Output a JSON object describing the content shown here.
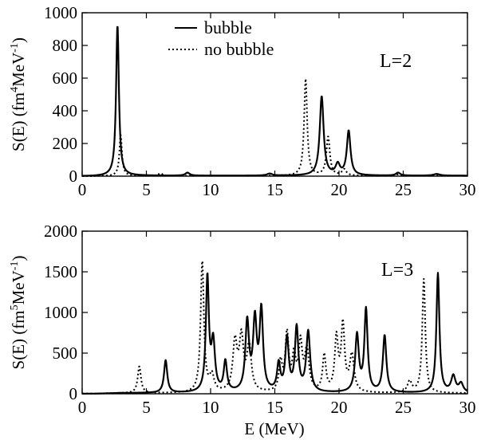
{
  "figure": {
    "xlabel": "E (MeV)"
  },
  "chart_data": [
    {
      "type": "line",
      "panel_label": "L=2",
      "ylabel_main": "S(E) (fm",
      "ylabel_sup1": "4",
      "ylabel_mid": "MeV",
      "ylabel_sup2": "-1",
      "ylabel_end": ")",
      "xlim": [
        0,
        30
      ],
      "ylim": [
        0,
        1000
      ],
      "xticks": [
        0,
        5,
        10,
        15,
        20,
        25,
        30
      ],
      "yticks": [
        0,
        200,
        400,
        600,
        800,
        1000
      ],
      "legend": {
        "placement": "top-center"
      },
      "series": [
        {
          "name": "bubble",
          "style": "solid",
          "color": "#000000",
          "peaks": [
            {
              "e": 2.75,
              "h": 925,
              "w": 0.13
            },
            {
              "e": 8.2,
              "h": 18,
              "w": 0.2
            },
            {
              "e": 14.6,
              "h": 12,
              "w": 0.25
            },
            {
              "e": 18.65,
              "h": 485,
              "w": 0.18
            },
            {
              "e": 19.9,
              "h": 65,
              "w": 0.2
            },
            {
              "e": 20.75,
              "h": 272,
              "w": 0.17
            },
            {
              "e": 24.6,
              "h": 18,
              "w": 0.2
            },
            {
              "e": 27.6,
              "h": 10,
              "w": 0.3
            }
          ],
          "baseline": 3
        },
        {
          "name": "no bubble",
          "style": "dotted",
          "color": "#000000",
          "peaks": [
            {
              "e": 3.0,
              "h": 250,
              "w": 0.12
            },
            {
              "e": 6.1,
              "h": 15,
              "w": 0.2
            },
            {
              "e": 17.4,
              "h": 592,
              "w": 0.14
            },
            {
              "e": 19.15,
              "h": 238,
              "w": 0.16
            },
            {
              "e": 20.4,
              "h": 38,
              "w": 0.2
            },
            {
              "e": 24.5,
              "h": 8,
              "w": 0.3
            }
          ],
          "baseline": 2
        }
      ]
    },
    {
      "type": "line",
      "panel_label": "L=3",
      "ylabel_main": "S(E) (fm",
      "ylabel_sup1": "5",
      "ylabel_mid": "MeV",
      "ylabel_sup2": "-1",
      "ylabel_end": ")",
      "xlim": [
        0,
        30
      ],
      "ylim": [
        0,
        2000
      ],
      "xticks": [
        0,
        5,
        10,
        15,
        20,
        25,
        30
      ],
      "yticks": [
        0,
        500,
        1000,
        1500,
        2000
      ],
      "series": [
        {
          "name": "bubble",
          "style": "solid",
          "color": "#000000",
          "peaks": [
            {
              "e": 6.5,
              "h": 400,
              "w": 0.15
            },
            {
              "e": 9.75,
              "h": 1400,
              "w": 0.14
            },
            {
              "e": 10.2,
              "h": 600,
              "w": 0.17
            },
            {
              "e": 11.15,
              "h": 370,
              "w": 0.15
            },
            {
              "e": 12.85,
              "h": 850,
              "w": 0.17
            },
            {
              "e": 13.45,
              "h": 850,
              "w": 0.17
            },
            {
              "e": 13.95,
              "h": 980,
              "w": 0.16
            },
            {
              "e": 15.3,
              "h": 330,
              "w": 0.15
            },
            {
              "e": 15.95,
              "h": 650,
              "w": 0.16
            },
            {
              "e": 16.7,
              "h": 780,
              "w": 0.16
            },
            {
              "e": 17.6,
              "h": 740,
              "w": 0.18
            },
            {
              "e": 21.4,
              "h": 700,
              "w": 0.17
            },
            {
              "e": 22.1,
              "h": 1010,
              "w": 0.15
            },
            {
              "e": 23.55,
              "h": 700,
              "w": 0.16
            },
            {
              "e": 27.7,
              "h": 1470,
              "w": 0.14
            },
            {
              "e": 28.9,
              "h": 200,
              "w": 0.2
            },
            {
              "e": 29.5,
              "h": 110,
              "w": 0.2
            }
          ],
          "baseline": 8
        },
        {
          "name": "no bubble",
          "style": "dotted",
          "color": "#000000",
          "peaks": [
            {
              "e": 4.45,
              "h": 330,
              "w": 0.15
            },
            {
              "e": 9.35,
              "h": 1620,
              "w": 0.15
            },
            {
              "e": 10.1,
              "h": 200,
              "w": 0.2
            },
            {
              "e": 11.9,
              "h": 600,
              "w": 0.2
            },
            {
              "e": 12.4,
              "h": 640,
              "w": 0.2
            },
            {
              "e": 13.0,
              "h": 560,
              "w": 0.2
            },
            {
              "e": 15.45,
              "h": 350,
              "w": 0.15
            },
            {
              "e": 15.95,
              "h": 700,
              "w": 0.16
            },
            {
              "e": 16.5,
              "h": 420,
              "w": 0.17
            },
            {
              "e": 17.0,
              "h": 570,
              "w": 0.17
            },
            {
              "e": 17.5,
              "h": 500,
              "w": 0.2
            },
            {
              "e": 18.85,
              "h": 450,
              "w": 0.15
            },
            {
              "e": 19.8,
              "h": 650,
              "w": 0.16
            },
            {
              "e": 20.3,
              "h": 810,
              "w": 0.16
            },
            {
              "e": 21.0,
              "h": 450,
              "w": 0.2
            },
            {
              "e": 25.5,
              "h": 140,
              "w": 0.2
            },
            {
              "e": 26.6,
              "h": 1400,
              "w": 0.14
            }
          ],
          "baseline": 6
        }
      ]
    }
  ]
}
